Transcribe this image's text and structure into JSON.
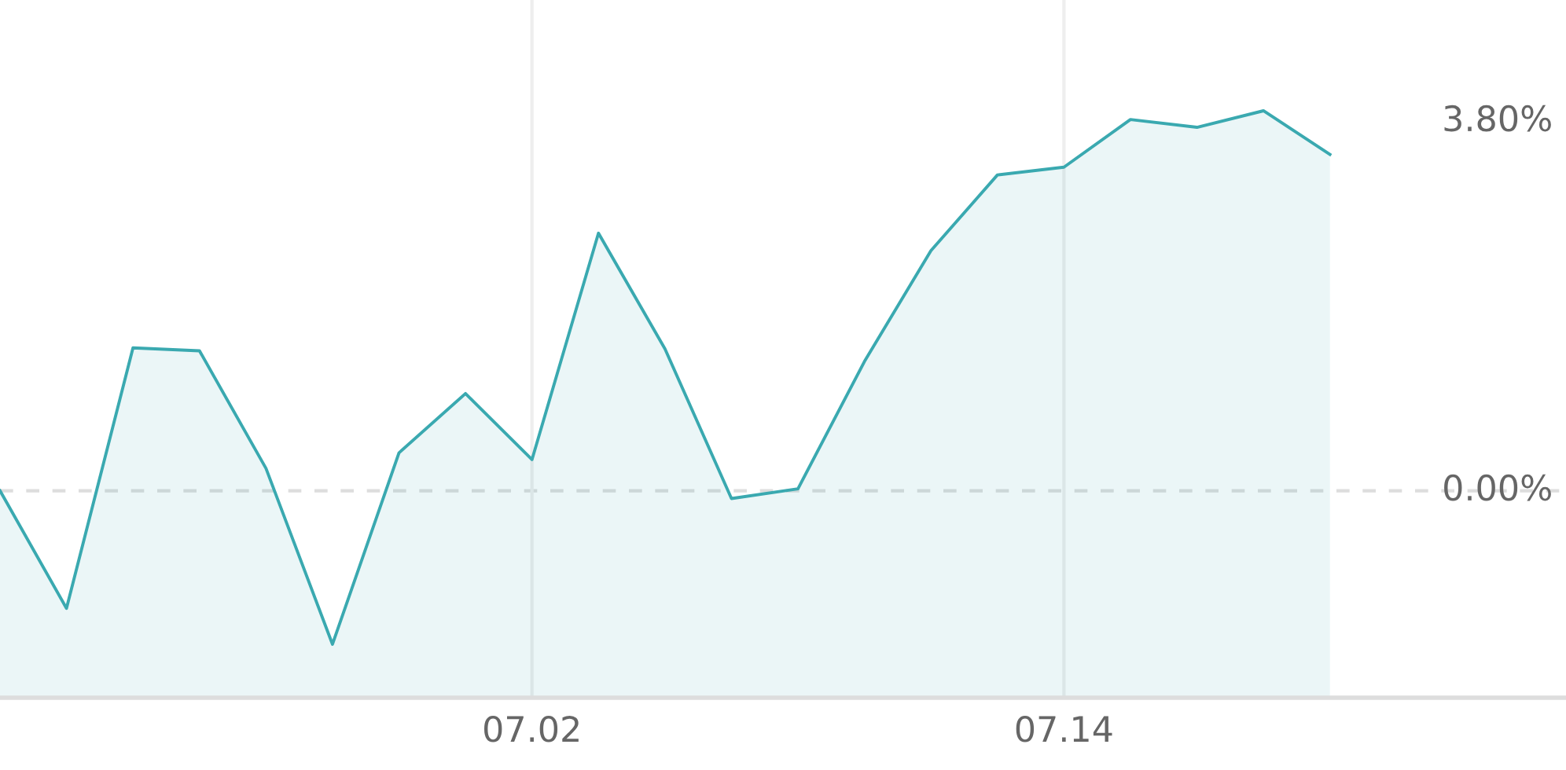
{
  "chart_data": {
    "type": "area",
    "categories": [
      null,
      null,
      null,
      null,
      null,
      null,
      null,
      null,
      "07.02",
      null,
      null,
      null,
      null,
      null,
      null,
      null,
      "07.14",
      null,
      null,
      null,
      null
    ],
    "series": [
      {
        "color": "#3aa9b0",
        "values": [
          0,
          -1.21,
          1.47,
          1.44,
          0.23,
          -1.58,
          0.39,
          1.0,
          0.32,
          2.65,
          1.46,
          -0.08,
          0.02,
          1.33,
          2.47,
          3.25,
          3.33,
          3.82,
          3.74,
          3.91,
          3.46
        ]
      }
    ],
    "ylim": [
      -2.13,
      5.05
    ],
    "yticks": [
      {
        "value": 0,
        "label": "0.00%"
      },
      {
        "value": 3.8,
        "label": "3.80%"
      }
    ],
    "ref_lines": [
      {
        "axis": "y",
        "value": 0,
        "color": "#dddddd",
        "line_style": "dashed"
      }
    ],
    "grid": "x",
    "legend": false
  }
}
